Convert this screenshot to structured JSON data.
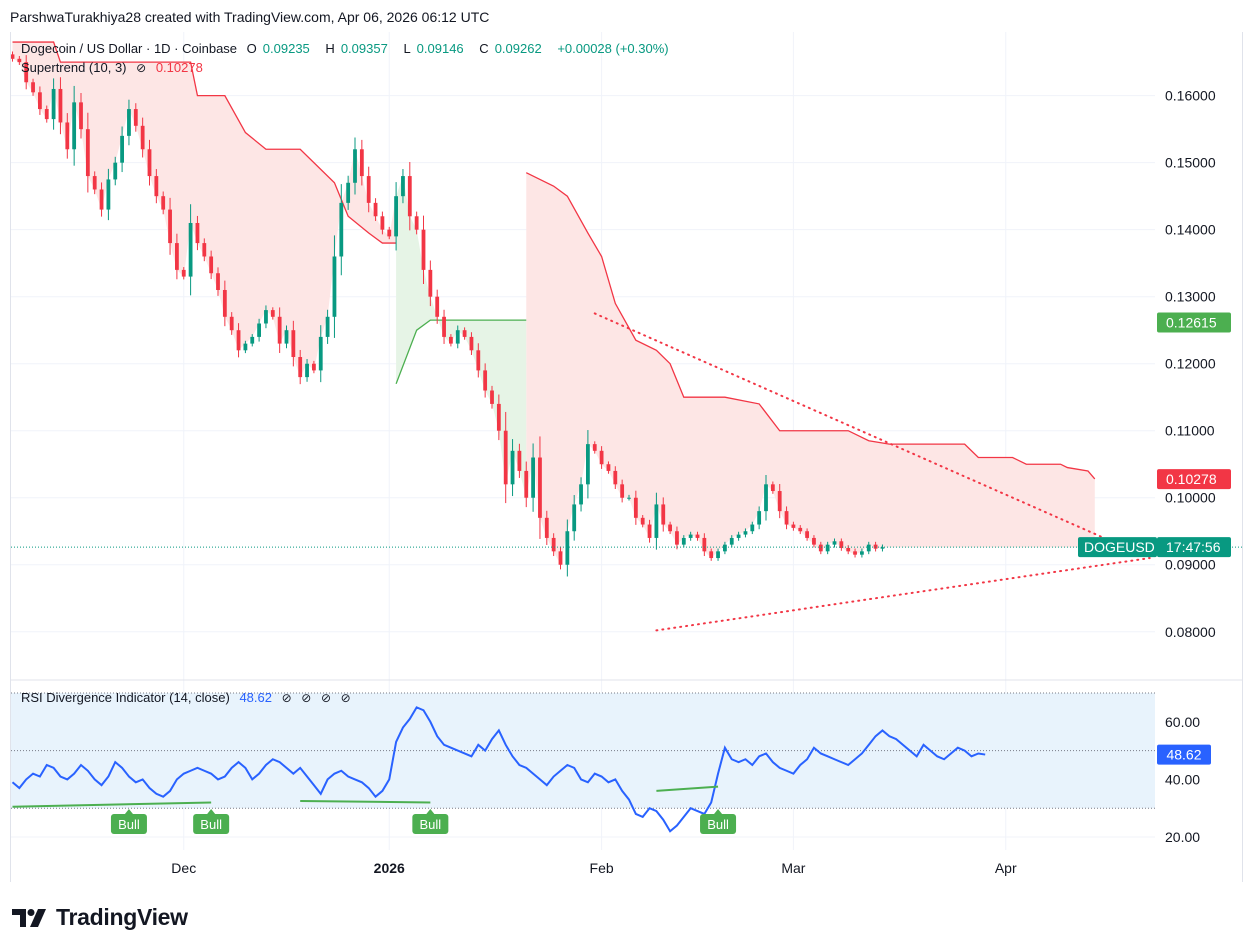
{
  "header": {
    "credit": "ParshwaTurakhiya28 created with TradingView.com, Apr 06, 2026 06:12 UTC"
  },
  "legend": {
    "symbol": "Dogecoin / US Dollar · 1D · Coinbase",
    "o_label": "O",
    "o_value": "0.09235",
    "h_label": "H",
    "h_value": "0.09357",
    "l_label": "L",
    "l_value": "0.09146",
    "c_label": "C",
    "c_value": "0.09262",
    "change": "+0.00028 (+0.30%)",
    "supertrend_name": "Supertrend (10, 3)",
    "supertrend_value": "0.10278",
    "rsi_name": "RSI Divergence Indicator (14, close)",
    "rsi_value": "48.62"
  },
  "footer": {
    "brand": "TradingView"
  },
  "colors": {
    "up": "#089981",
    "down": "#f23645",
    "rsi": "#2962ff",
    "bull": "#4caf50",
    "bearFill": "#fde6e5",
    "bullFill": "#e6f4e6",
    "rsiBand": "#e8f3fc"
  },
  "chart_data": [
    {
      "type": "candlestick",
      "title": "Dogecoin / US Dollar · 1D · Coinbase",
      "symbol_tag": "DOGEUSD",
      "countdown": "17:47:56",
      "last_price": 0.09262,
      "price_ticks": [
        "0.16000",
        "0.15000",
        "0.14000",
        "0.13000",
        "0.12000",
        "0.11000",
        "0.10000",
        "0.09000",
        "0.08000"
      ],
      "ylim": [
        0.0728,
        0.1695
      ],
      "x_tick_labels": [
        {
          "label": "Dec",
          "day": 31
        },
        {
          "label": "2026",
          "day": 61
        },
        {
          "label": "Feb",
          "day": 92
        },
        {
          "label": "Mar",
          "day": 120
        },
        {
          "label": "Apr",
          "day": 151
        }
      ],
      "x_range_days": [
        6,
        175
      ],
      "price_labels": [
        {
          "text": "0.12615",
          "value": 0.12615,
          "color": "#4caf50"
        },
        {
          "text": "0.10278",
          "value": 0.10278,
          "color": "#f23645"
        }
      ],
      "candles_start_day": 6,
      "closes": [
        0.1655,
        0.165,
        0.162,
        0.1605,
        0.158,
        0.1565,
        0.161,
        0.156,
        0.152,
        0.159,
        0.155,
        0.148,
        0.146,
        0.143,
        0.1475,
        0.15,
        0.154,
        0.158,
        0.1555,
        0.152,
        0.148,
        0.145,
        0.143,
        0.138,
        0.134,
        0.133,
        0.141,
        0.138,
        0.136,
        0.1335,
        0.131,
        0.127,
        0.125,
        0.122,
        0.123,
        0.124,
        0.126,
        0.128,
        0.127,
        0.123,
        0.125,
        0.121,
        0.118,
        0.12,
        0.119,
        0.124,
        0.127,
        0.136,
        0.144,
        0.147,
        0.152,
        0.148,
        0.144,
        0.142,
        0.14,
        0.139,
        0.145,
        0.148,
        0.142,
        0.14,
        0.134,
        0.13,
        0.127,
        0.124,
        0.123,
        0.125,
        0.124,
        0.122,
        0.119,
        0.116,
        0.114,
        0.11,
        0.102,
        0.107,
        0.104,
        0.1,
        0.106,
        0.097,
        0.094,
        0.092,
        0.09,
        0.095,
        0.099,
        0.102,
        0.108,
        0.107,
        0.105,
        0.104,
        0.102,
        0.1,
        0.1,
        0.097,
        0.096,
        0.094,
        0.099,
        0.096,
        0.095,
        0.093,
        0.094,
        0.0945,
        0.094,
        0.092,
        0.091,
        0.092,
        0.093,
        0.094,
        0.0945,
        0.095,
        0.096,
        0.098,
        0.102,
        0.101,
        0.098,
        0.096,
        0.0955,
        0.095,
        0.094,
        0.093,
        0.092,
        0.093,
        0.0935,
        0.0925,
        0.092,
        0.0915,
        0.092,
        0.093,
        0.0924,
        0.0926
      ],
      "supertrend_bear_1": [
        [
          6,
          0.168
        ],
        [
          12,
          0.168
        ],
        [
          13,
          0.165
        ],
        [
          32,
          0.165
        ],
        [
          33,
          0.16
        ],
        [
          37,
          0.16
        ],
        [
          40,
          0.1545
        ],
        [
          43,
          0.152
        ],
        [
          48,
          0.152
        ],
        [
          53,
          0.147
        ],
        [
          55,
          0.142
        ],
        [
          58,
          0.1395
        ],
        [
          60,
          0.138
        ],
        [
          62,
          0.138
        ]
      ],
      "supertrend_bull": [
        [
          62,
          0.117
        ],
        [
          65,
          0.125
        ],
        [
          67,
          0.1265
        ],
        [
          81,
          0.1265
        ]
      ],
      "supertrend_bear_2": [
        [
          81,
          0.1485
        ],
        [
          83,
          0.1475
        ],
        [
          85,
          0.1465
        ],
        [
          87,
          0.145
        ],
        [
          90,
          0.1395
        ],
        [
          92,
          0.136
        ],
        [
          94,
          0.129
        ],
        [
          97,
          0.1235
        ],
        [
          100,
          0.122
        ],
        [
          102,
          0.12
        ],
        [
          104,
          0.115
        ],
        [
          110,
          0.115
        ],
        [
          115,
          0.114
        ],
        [
          118,
          0.11
        ],
        [
          128,
          0.11
        ],
        [
          131,
          0.1085
        ],
        [
          134,
          0.108
        ],
        [
          145,
          0.108
        ],
        [
          147,
          0.106
        ],
        [
          152,
          0.106
        ],
        [
          154,
          0.105
        ],
        [
          159,
          0.105
        ],
        [
          160,
          0.1045
        ],
        [
          163,
          0.104
        ],
        [
          164,
          0.1028
        ]
      ],
      "trendlines": [
        {
          "from": [
            91,
            0.1275
          ],
          "to": [
            172,
            0.091
          ]
        },
        {
          "from": [
            100,
            0.0802
          ],
          "to": [
            172,
            0.091
          ]
        }
      ]
    },
    {
      "type": "line",
      "title": "RSI Divergence Indicator (14, close)",
      "ylim": [
        15.5,
        74.5
      ],
      "y_ticks": [
        "60.00",
        "40.00",
        "20.00"
      ],
      "band": [
        30,
        70
      ],
      "midline": 50,
      "current_label": "48.62",
      "current_value": 48.62,
      "rsi_start_day": 6,
      "rsi": [
        39,
        37,
        40,
        42,
        41,
        45,
        44,
        41,
        40,
        42,
        45,
        43,
        40,
        38,
        41,
        46,
        44,
        41,
        39,
        40,
        37,
        35,
        34,
        36,
        40,
        42,
        43,
        44,
        43,
        42,
        40,
        41,
        44,
        46,
        44,
        40,
        42,
        45,
        47,
        46,
        44,
        42,
        44,
        41,
        38,
        35,
        40,
        42,
        43,
        41,
        40,
        39,
        37,
        34,
        36,
        40,
        53,
        58,
        61,
        65,
        64,
        60,
        55,
        52,
        51,
        50,
        49,
        48,
        52,
        50,
        54,
        57,
        52,
        48,
        45,
        44,
        42,
        40,
        38,
        41,
        43,
        45,
        44,
        40,
        39,
        42,
        41,
        39,
        40,
        36,
        33,
        28,
        27,
        30,
        29,
        26,
        22,
        24,
        27,
        30,
        29,
        28,
        32,
        42,
        51,
        47,
        46,
        47,
        45,
        48,
        49,
        46,
        44,
        43,
        42,
        45,
        47,
        51,
        49,
        48,
        47,
        46,
        45,
        47,
        49,
        52,
        55,
        57,
        55,
        54,
        52,
        50,
        48,
        52,
        50,
        48,
        47,
        49,
        51,
        50,
        48,
        49,
        48.62
      ],
      "divergences": [
        {
          "label": "Bull",
          "from": [
            6,
            30.5
          ],
          "to": [
            35,
            32.0
          ]
        },
        {
          "label": "Bull",
          "from": [
            48,
            32.5
          ],
          "to": [
            67,
            32.0
          ]
        },
        {
          "label": "Bull",
          "from": [
            100,
            36.0
          ],
          "to": [
            109,
            37.5
          ]
        }
      ],
      "bull_labels": [
        {
          "text": "Bull",
          "day": 23
        },
        {
          "text": "Bull",
          "day": 35
        },
        {
          "text": "Bull",
          "day": 67
        },
        {
          "text": "Bull",
          "day": 109
        }
      ]
    }
  ]
}
